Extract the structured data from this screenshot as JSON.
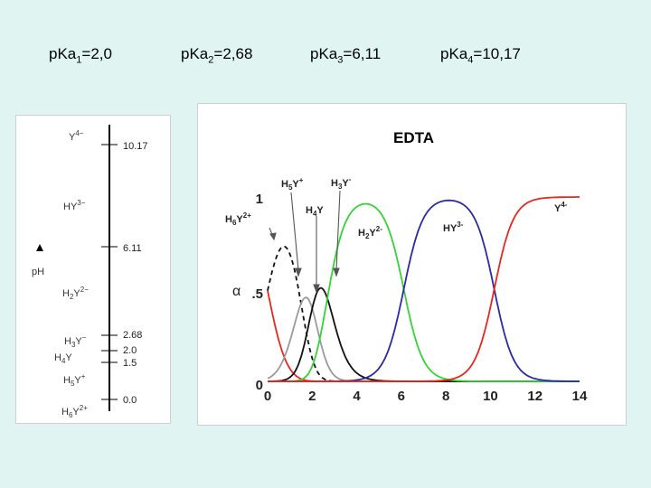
{
  "header": {
    "pka": [
      {
        "base": "p",
        "ka": "Ka",
        "sub": "1",
        "value": "=2,0"
      },
      {
        "base": "p",
        "ka": "Ka",
        "sub": "2",
        "value": "=2,68"
      },
      {
        "base": "p",
        "ka": "Ka",
        "sub": "3",
        "value": "=6,11"
      },
      {
        "base": "p",
        "ka": "Ka",
        "sub": "4",
        "value": "=10,17"
      }
    ]
  },
  "ladder": {
    "axis_label": "pH",
    "tick_labels": [
      "10.17",
      "6.11",
      "2.68",
      "2.0",
      "1.5",
      "0.0"
    ],
    "species": [
      {
        "main": "Y",
        "sup": "4−"
      },
      {
        "main": "HY",
        "sup": "3−"
      },
      {
        "main": "H",
        "sub": "2",
        "rest": "Y",
        "sup": "2−"
      },
      {
        "main": "H",
        "sub": "3",
        "rest": "Y",
        "sup": "−"
      },
      {
        "main": "H",
        "sub": "4",
        "rest": "Y",
        "sup": ""
      },
      {
        "main": "H",
        "sub": "5",
        "rest": "Y",
        "sup": "+"
      },
      {
        "main": "H",
        "sub": "6",
        "rest": "Y",
        "sup": "2+"
      }
    ]
  },
  "chart_data": {
    "type": "line",
    "title": "EDTA",
    "xlabel": "",
    "ylabel": "α",
    "xlim": [
      0,
      14
    ],
    "ylim": [
      0,
      1
    ],
    "x_ticks": [
      "0",
      "2",
      "4",
      "6",
      "8",
      "10",
      "12",
      "14"
    ],
    "y_ticks": [
      "0",
      ".5",
      "1"
    ],
    "pKa": [
      0.0,
      1.5,
      2.0,
      2.68,
      6.11,
      10.17
    ],
    "series": [
      {
        "name": "H6Y2+",
        "label": {
          "main": "H",
          "sub": "6",
          "rest": "Y",
          "sup": "2+"
        },
        "color": "#e8281e",
        "dash": "",
        "species_index": 0
      },
      {
        "name": "H5Y+",
        "label": {
          "main": "H",
          "sub": "5",
          "rest": "Y",
          "sup": "+"
        },
        "color": "#111111",
        "dash": "5,4",
        "species_index": 1
      },
      {
        "name": "H4Y",
        "label": {
          "main": "H",
          "sub": "4",
          "rest": "Y",
          "sup": ""
        },
        "color": "#9a9a9a",
        "dash": "",
        "species_index": 2
      },
      {
        "name": "H3Y-",
        "label": {
          "main": "H",
          "sub": "3",
          "rest": "Y",
          "sup": "-"
        },
        "color": "#111111",
        "dash": "",
        "species_index": 3
      },
      {
        "name": "H2Y2-",
        "label": {
          "main": "H",
          "sub": "2",
          "rest": "Y",
          "sup": "2-"
        },
        "color": "#35d435",
        "dash": "",
        "species_index": 4
      },
      {
        "name": "HY3-",
        "label": {
          "main": "HY",
          "sub": "",
          "rest": "",
          "sup": "3-"
        },
        "color": "#2a2aa8",
        "dash": "",
        "species_index": 5
      },
      {
        "name": "Y4-",
        "label": {
          "main": "Y",
          "sub": "",
          "rest": "",
          "sup": "4-"
        },
        "color": "#e8281e",
        "dash": "",
        "species_index": 6
      }
    ]
  },
  "colors": {
    "background": "#e0f5f1",
    "title_blue": "#2a5fa8"
  }
}
